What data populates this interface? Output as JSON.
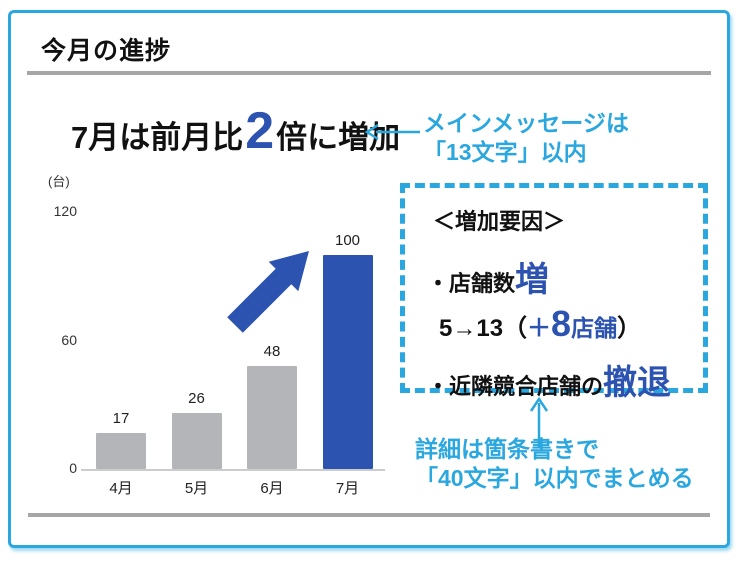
{
  "slide": {
    "title": "今月の進捗",
    "main_message": {
      "prefix": "7月は前月比",
      "highlight": "2",
      "suffix": "倍に増加"
    },
    "annotation_top": {
      "line1": "メインメッセージは",
      "line2": "「13文字」以内"
    },
    "annotation_bottom": {
      "line1": "詳細は箇条書きで",
      "line2": "「40文字」以内でまとめる"
    },
    "factors_box": {
      "heading": "＜増加要因＞",
      "item1_bullet": "・",
      "item1_text": "店舗数",
      "item1_highlight": "増",
      "detail_prefix": "5→13（",
      "detail_plus": "＋",
      "detail_number": "8",
      "detail_unit": "店舗",
      "detail_suffix": "）",
      "item2_bullet": "・",
      "item2_text": "近隣競合店舗の",
      "item2_highlight": "撤退"
    }
  },
  "chart_data": {
    "type": "bar",
    "categories": [
      "4月",
      "5月",
      "6月",
      "7月"
    ],
    "values": [
      17,
      26,
      48,
      100
    ],
    "title": "",
    "xlabel": "",
    "ylabel": "(台)",
    "unit_label": "(台)",
    "y_ticks": [
      0,
      60,
      120
    ],
    "ylim": [
      0,
      120
    ],
    "grid": false,
    "legend": false,
    "bar_colors": [
      "#b3b5b9",
      "#b3b5b9",
      "#b3b5b9",
      "#2d53b0"
    ],
    "highlight_index": 3,
    "annotation": "up-right growth arrow between 6月 and 7月"
  },
  "colors": {
    "accent_blue": "#2d53b0",
    "hand_cyan": "#2ba7e0",
    "bar_gray": "#b3b5b9",
    "rule_gray": "#a6a6a6"
  }
}
